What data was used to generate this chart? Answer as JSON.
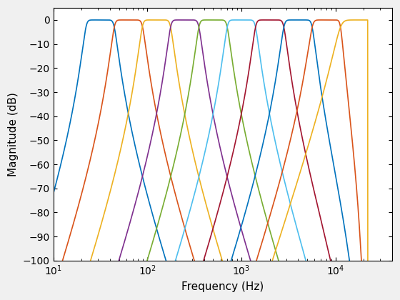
{
  "xlabel": "Frequency (Hz)",
  "ylabel": "Magnitude (dB)",
  "xlim": [
    10,
    40000
  ],
  "ylim": [
    -100,
    5
  ],
  "yticks": [
    0,
    -10,
    -20,
    -30,
    -40,
    -50,
    -60,
    -70,
    -80,
    -90,
    -100
  ],
  "center_freqs": [
    31.5,
    63,
    125,
    250,
    500,
    1000,
    2000,
    4000,
    8000,
    16000
  ],
  "fs": 44100,
  "filter_order": 6,
  "colors": [
    "#0072BD",
    "#D95319",
    "#EDB120",
    "#7E2F8E",
    "#77AC30",
    "#4DBEEE",
    "#A2142F",
    "#0072BD",
    "#D95319",
    "#EDB120"
  ],
  "linewidth": 1.2,
  "fig_width": 5.6,
  "fig_height": 4.2,
  "dpi": 100
}
